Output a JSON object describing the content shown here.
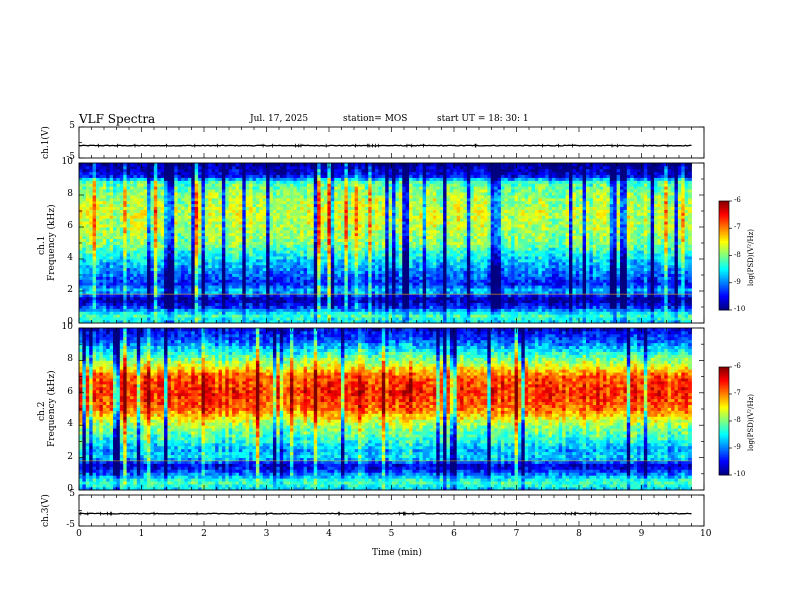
{
  "header": {
    "title": "VLF Spectra",
    "date": "Jul. 17, 2025",
    "station": "station= MOS",
    "start_ut": "start UT =  18: 30: 1"
  },
  "chart_data": [
    {
      "type": "line",
      "name": "ch1-voltage",
      "ylabel": "ch.1(V)",
      "ylim": [
        -5,
        5
      ],
      "yticks": [
        "5",
        "-5"
      ],
      "x": [
        0,
        9.8
      ],
      "values": [
        -1.0,
        -1.0
      ],
      "color": "#000000"
    },
    {
      "type": "heatmap",
      "name": "ch1-spectrogram",
      "ylabel": "ch.1\nFrequency (kHz)",
      "ylim": [
        0,
        10
      ],
      "yticks": [
        "0",
        "2",
        "4",
        "6",
        "8",
        "10"
      ],
      "xlim": [
        0,
        10
      ],
      "data_end_min": 9.8,
      "colorbar": {
        "label": "log(PSD)(V²/Hz)",
        "range": [
          -10,
          -6
        ],
        "ticks": [
          "-6",
          "-7",
          "-8",
          "-9",
          "-10"
        ]
      },
      "band_profile_khz": [
        [
          0,
          -8.6
        ],
        [
          0.5,
          -8.2
        ],
        [
          1.0,
          -9.3
        ],
        [
          1.5,
          -9.9
        ],
        [
          2.0,
          -8.7
        ],
        [
          2.5,
          -9.4
        ],
        [
          3.0,
          -9.1
        ],
        [
          4.0,
          -8.6
        ],
        [
          5.0,
          -8.0
        ],
        [
          6.0,
          -7.8
        ],
        [
          7.0,
          -7.7
        ],
        [
          8.0,
          -7.9
        ],
        [
          8.8,
          -8.2
        ],
        [
          9.2,
          -9.5
        ],
        [
          10.0,
          -10.0
        ]
      ]
    },
    {
      "type": "heatmap",
      "name": "ch2-spectrogram",
      "ylabel": "ch.2\nFrequency (kHz)",
      "ylim": [
        0,
        10
      ],
      "yticks": [
        "0",
        "2",
        "4",
        "6",
        "8",
        "10"
      ],
      "xlim": [
        0,
        10
      ],
      "data_end_min": 9.8,
      "colorbar": {
        "label": "log(PSD)(V²/Hz)",
        "range": [
          -10,
          -6
        ],
        "ticks": [
          "-6",
          "-7",
          "-8",
          "-9",
          "-10"
        ]
      },
      "band_profile_khz": [
        [
          0,
          -8.7
        ],
        [
          0.5,
          -8.2
        ],
        [
          1.0,
          -9.0
        ],
        [
          1.5,
          -9.7
        ],
        [
          2.0,
          -8.6
        ],
        [
          2.5,
          -8.8
        ],
        [
          3.0,
          -8.4
        ],
        [
          4.0,
          -7.9
        ],
        [
          5.0,
          -6.9
        ],
        [
          6.0,
          -6.6
        ],
        [
          7.0,
          -6.8
        ],
        [
          7.6,
          -7.5
        ],
        [
          8.5,
          -8.4
        ],
        [
          9.3,
          -9.2
        ],
        [
          10.0,
          -9.6
        ]
      ]
    },
    {
      "type": "line",
      "name": "ch3-voltage",
      "ylabel": "ch.3(V)",
      "ylim": [
        -5,
        5
      ],
      "yticks": [
        "5",
        "-5"
      ],
      "x": [
        0,
        9.8
      ],
      "values": [
        -1.0,
        -1.0
      ],
      "color": "#000000"
    }
  ],
  "x_axis": {
    "label": "Time (min)",
    "range": [
      0,
      10
    ],
    "ticks": [
      "0",
      "1",
      "2",
      "3",
      "4",
      "5",
      "6",
      "7",
      "8",
      "9",
      "10"
    ]
  }
}
